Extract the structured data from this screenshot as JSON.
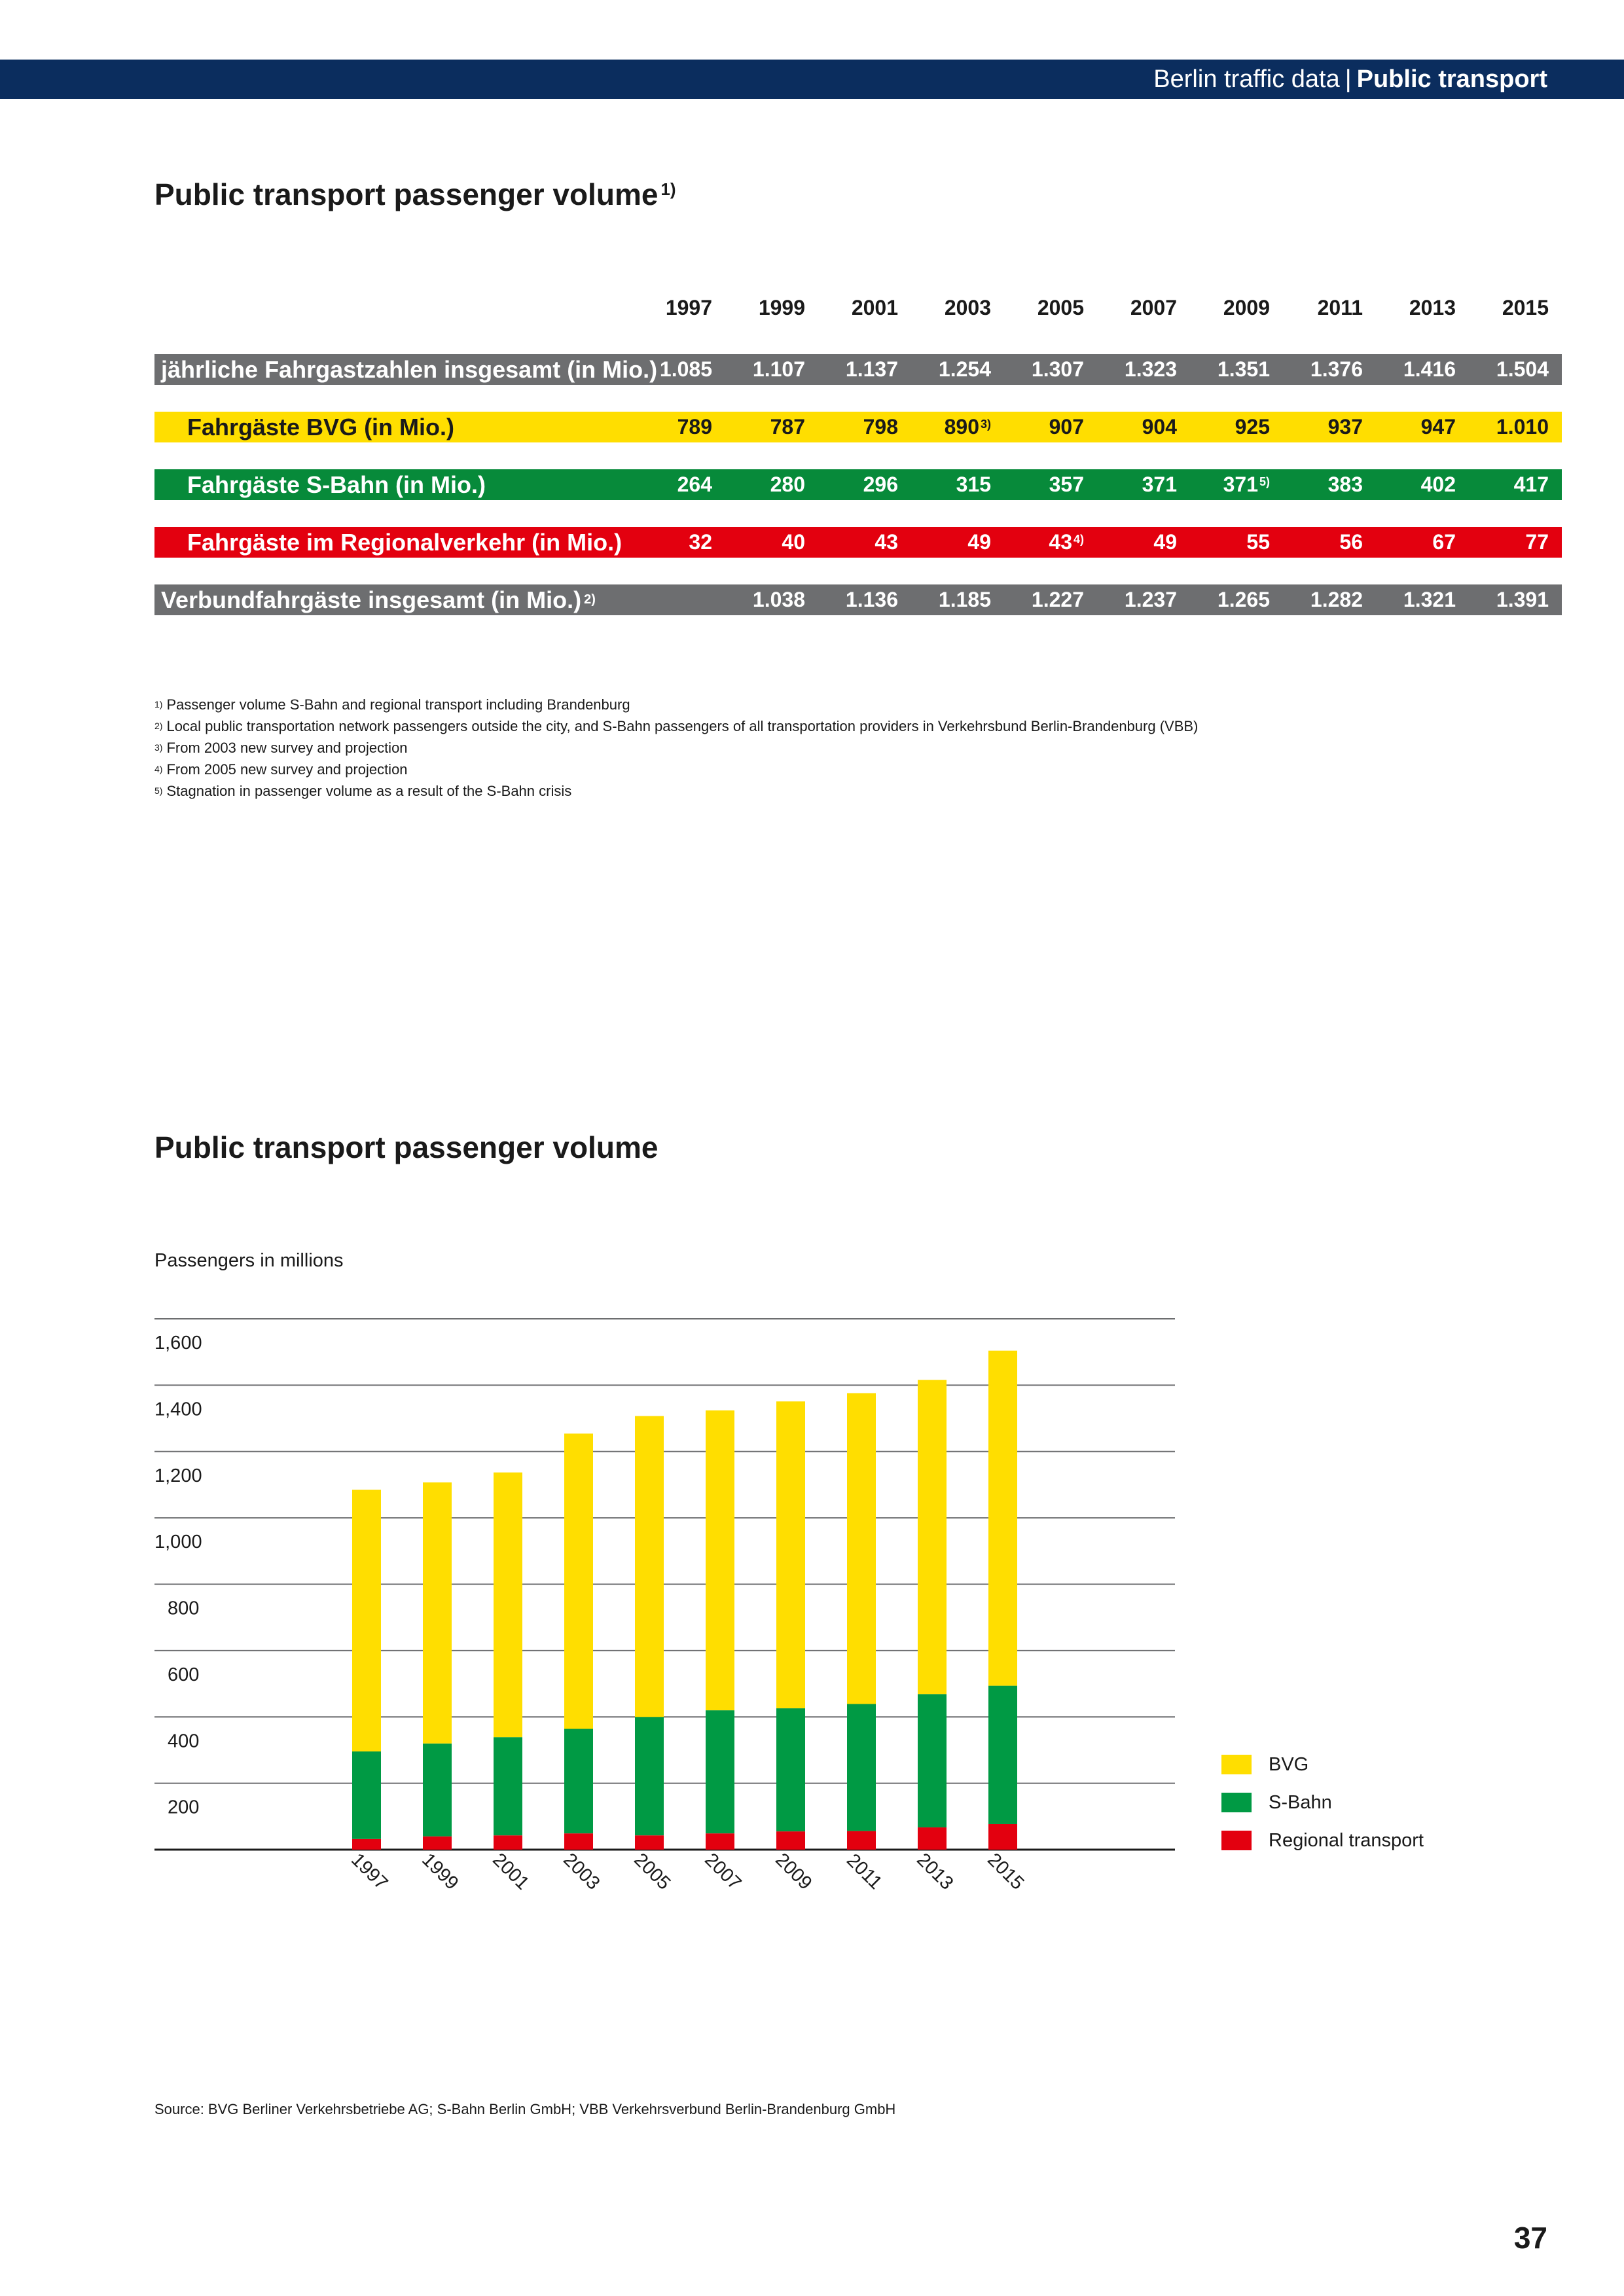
{
  "header": {
    "section": "Berlin traffic data",
    "separator": "|",
    "topic": "Public transport"
  },
  "table_section": {
    "title": "Public transport passenger volume",
    "title_note": "1)"
  },
  "table": {
    "years": [
      "1997",
      "1999",
      "2001",
      "2003",
      "2005",
      "2007",
      "2009",
      "2011",
      "2013",
      "2015"
    ],
    "rows": [
      {
        "label": "jährliche Fahrgastzahlen insgesamt (in Mio.)",
        "label_note": "",
        "color": "#6d6e70",
        "values": [
          "1.085",
          "1.107",
          "1.137",
          "1.254",
          "1.307",
          "1.323",
          "1.351",
          "1.376",
          "1.416",
          "1.504"
        ],
        "notes": [
          "",
          "",
          "",
          "",
          "",
          "",
          "",
          "",
          "",
          ""
        ]
      },
      {
        "label": "Fahrgäste BVG (in Mio.)",
        "label_note": "",
        "color": "#ffde00",
        "values": [
          "789",
          "787",
          "798",
          "890",
          "907",
          "904",
          "925",
          "937",
          "947",
          "1.010"
        ],
        "notes": [
          "",
          "",
          "",
          "3)",
          "",
          "",
          "",
          "",
          "",
          ""
        ]
      },
      {
        "label": "Fahrgäste S-Bahn (in Mio.)",
        "label_note": "",
        "color": "#078a3a",
        "values": [
          "264",
          "280",
          "296",
          "315",
          "357",
          "371",
          "371",
          "383",
          "402",
          "417"
        ],
        "notes": [
          "",
          "",
          "",
          "",
          "",
          "",
          "5)",
          "",
          "",
          ""
        ]
      },
      {
        "label": "Fahrgäste im Regionalverkehr (in Mio.)",
        "label_note": "",
        "color": "#e3000f",
        "values": [
          "32",
          "40",
          "43",
          "49",
          "43",
          "49",
          "55",
          "56",
          "67",
          "77"
        ],
        "notes": [
          "",
          "",
          "",
          "",
          "4)",
          "",
          "",
          "",
          "",
          ""
        ]
      },
      {
        "label": "Verbundfahrgäste insgesamt (in Mio.)",
        "label_note": "2)",
        "color": "#6d6e70",
        "values": [
          "",
          "1.038",
          "1.136",
          "1.185",
          "1.227",
          "1.237",
          "1.265",
          "1.282",
          "1.321",
          "1.391"
        ],
        "notes": [
          "",
          "",
          "",
          "",
          "",
          "",
          "",
          "",
          "",
          ""
        ]
      }
    ]
  },
  "footnotes": [
    {
      "mark": "1)",
      "text": "Passenger volume S-Bahn and regional transport including Brandenburg"
    },
    {
      "mark": "2)",
      "text": "Local public transportation network passengers outside the city, and S-Bahn passengers of all transportation providers in Verkehrsbund Berlin-Brandenburg (VBB)"
    },
    {
      "mark": "3)",
      "text": "From 2003 new survey and projection"
    },
    {
      "mark": "4)",
      "text": "From 2005 new survey and projection"
    },
    {
      "mark": "5)",
      "text": "Stagnation in passenger volume as a result of the S-Bahn crisis"
    }
  ],
  "chart_section": {
    "title": "Public transport passenger volume",
    "axis_caption": "Passengers in millions"
  },
  "chart_data": {
    "type": "bar",
    "stacked": true,
    "categories": [
      "1997",
      "1999",
      "2001",
      "2003",
      "2005",
      "2007",
      "2009",
      "2011",
      "2013",
      "2015"
    ],
    "series": [
      {
        "name": "Regional transport",
        "color": "#e3000f",
        "values": [
          32,
          40,
          43,
          49,
          43,
          49,
          55,
          56,
          67,
          77
        ]
      },
      {
        "name": "S-Bahn",
        "color": "#009a44",
        "values": [
          264,
          280,
          296,
          315,
          357,
          371,
          371,
          383,
          402,
          417
        ]
      },
      {
        "name": "BVG",
        "color": "#ffde00",
        "values": [
          789,
          787,
          798,
          890,
          907,
          904,
          925,
          937,
          947,
          1010
        ]
      }
    ],
    "ylim": [
      0,
      1600
    ],
    "yticks": [
      200,
      400,
      600,
      800,
      1000,
      1200,
      1400,
      1600
    ],
    "ytick_labels": [
      "200",
      "400",
      "600",
      "800",
      "1,000",
      "1,200",
      "1,400",
      "1,600"
    ],
    "grid": true,
    "legend_position": "right",
    "legend_order": [
      "BVG",
      "S-Bahn",
      "Regional transport"
    ]
  },
  "source": "Source: BVG Berliner Verkehrsbetriebe AG; S-Bahn Berlin GmbH; VBB Verkehrsverbund Berlin-Brandenburg GmbH",
  "page_number": "37"
}
